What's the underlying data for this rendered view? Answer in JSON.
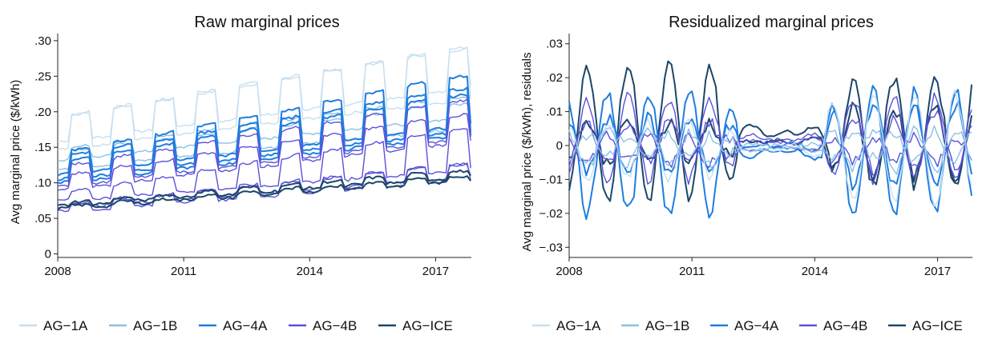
{
  "chart_data": [
    {
      "type": "line",
      "title": "Raw marginal prices",
      "ylabel": "Avg marginal price ($/kWh)",
      "xlabel": "",
      "x_ticks": [
        "2008",
        "2011",
        "2014",
        "2017"
      ],
      "y_ticks": [
        "0",
        ".05",
        ".10",
        ".15",
        ".20",
        ".25",
        ".30"
      ],
      "xlim": [
        2008.0,
        2017.85
      ],
      "ylim": [
        -0.005,
        0.31
      ],
      "grid": false,
      "legend_position": "bottom",
      "series": [
        {
          "name": "AG−1A",
          "color": "#c6dff0",
          "style": "seasonal",
          "base": [
            0.158,
            0.22
          ],
          "summer_add": [
            0.034,
            0.058
          ]
        },
        {
          "name": "AG−1A",
          "color": "#c6dff0",
          "style": "seasonal",
          "base": [
            0.148,
            0.205
          ],
          "summer_add": [
            0.046,
            0.075
          ]
        },
        {
          "name": "AG−1B",
          "color": "#8cc0e6",
          "style": "seasonal",
          "base": [
            0.132,
            0.18
          ],
          "summer_add": [
            0.012,
            0.02
          ]
        },
        {
          "name": "AG−1B",
          "color": "#8cc0e6",
          "style": "seasonal",
          "base": [
            0.12,
            0.165
          ],
          "summer_add": [
            0.028,
            0.045
          ]
        },
        {
          "name": "AG−4A",
          "color": "#1f7ede",
          "style": "seasonal",
          "base": [
            0.112,
            0.168
          ],
          "summer_add": [
            0.03,
            0.072
          ]
        },
        {
          "name": "AG−4A",
          "color": "#1f7ede",
          "style": "seasonal",
          "base": [
            0.105,
            0.16
          ],
          "summer_add": [
            0.032,
            0.062
          ]
        },
        {
          "name": "AG−4A",
          "color": "#1f7ede",
          "style": "seasonal",
          "base": [
            0.1,
            0.155
          ],
          "summer_add": [
            0.03,
            0.058
          ]
        },
        {
          "name": "AG−4B",
          "color": "#5a51db",
          "style": "seasonal",
          "base": [
            0.095,
            0.15
          ],
          "summer_add": [
            0.028,
            0.055
          ]
        },
        {
          "name": "AG−4B",
          "color": "#5a51db",
          "style": "seasonal",
          "base": [
            0.09,
            0.145
          ],
          "summer_add": [
            0.02,
            0.04
          ]
        },
        {
          "name": "AG−4B",
          "color": "#5a51db",
          "style": "seasonal",
          "base": [
            0.075,
            0.105
          ],
          "summer_add": [
            0.01,
            0.06
          ]
        },
        {
          "name": "AG−4B",
          "color": "#5a51db",
          "style": "seasonal",
          "base": [
            0.065,
            0.095
          ],
          "summer_add": [
            0.005,
            0.02
          ]
        },
        {
          "name": "AG−4B",
          "color": "#5a51db",
          "style": "seasonal",
          "base": [
            0.06,
            0.09
          ],
          "summer_add": [
            0.008,
            0.025
          ]
        },
        {
          "name": "AG−ICE",
          "color": "#1d4668",
          "style": "seasonal",
          "base": [
            0.068,
            0.095
          ],
          "summer_add": [
            0.004,
            0.01
          ]
        },
        {
          "name": "AG−ICE",
          "color": "#1d4668",
          "style": "seasonal",
          "base": [
            0.064,
            0.09
          ],
          "summer_add": [
            0.003,
            0.008
          ]
        }
      ]
    },
    {
      "type": "line",
      "title": "Residualized marginal prices",
      "ylabel": "Avg marginal price ($/kWh), residuals",
      "xlabel": "",
      "x_ticks": [
        "2008",
        "2011",
        "2014",
        "2017"
      ],
      "y_ticks": [
        "−.03",
        "−.02",
        "−.01",
        "0",
        ".01",
        ".02",
        ".03"
      ],
      "xlim": [
        2008.0,
        2017.85
      ],
      "ylim": [
        -0.033,
        0.033
      ],
      "grid": false,
      "legend_position": "bottom",
      "series": [
        {
          "name": "AG−ICE",
          "color": "#1d4668",
          "style": "residual",
          "amp_early": 0.02,
          "amp_late": -0.016,
          "offset": 0.004
        },
        {
          "name": "AG−ICE",
          "color": "#1d4668",
          "style": "residual",
          "amp_early": 0.006,
          "amp_late": -0.01,
          "offset": 0.001
        },
        {
          "name": "AG−4A",
          "color": "#1f7ede",
          "style": "residual",
          "amp_early": -0.018,
          "amp_late": 0.018,
          "offset": -0.002
        },
        {
          "name": "AG−4A",
          "color": "#1f7ede",
          "style": "residual",
          "amp_early": -0.008,
          "amp_late": 0.012,
          "offset": 0.0
        },
        {
          "name": "AG−4B",
          "color": "#5a51db",
          "style": "residual",
          "amp_early": 0.012,
          "amp_late": -0.012,
          "offset": 0.002
        },
        {
          "name": "AG−4B",
          "color": "#5a51db",
          "style": "residual",
          "amp_early": 0.006,
          "amp_late": -0.008,
          "offset": 0.001
        },
        {
          "name": "AG−4B",
          "color": "#5a51db",
          "style": "residual",
          "amp_early": -0.004,
          "amp_late": 0.004,
          "offset": -0.001
        },
        {
          "name": "AG−1A",
          "color": "#c6dff0",
          "style": "residual",
          "amp_early": -0.008,
          "amp_late": 0.016,
          "offset": -0.001
        },
        {
          "name": "AG−1B",
          "color": "#8cc0e6",
          "style": "residual",
          "amp_early": -0.005,
          "amp_late": 0.006,
          "offset": -0.001
        },
        {
          "name": "AG−1B",
          "color": "#8cc0e6",
          "style": "residual",
          "amp_early": 0.003,
          "amp_late": -0.004,
          "offset": 0.0
        }
      ]
    }
  ],
  "legend": [
    {
      "label": "AG−1A",
      "color": "#c6dff0"
    },
    {
      "label": "AG−1B",
      "color": "#8cc0e6"
    },
    {
      "label": "AG−4A",
      "color": "#1f7ede"
    },
    {
      "label": "AG−4B",
      "color": "#5a51db"
    },
    {
      "label": "AG−ICE",
      "color": "#1d4668"
    }
  ]
}
